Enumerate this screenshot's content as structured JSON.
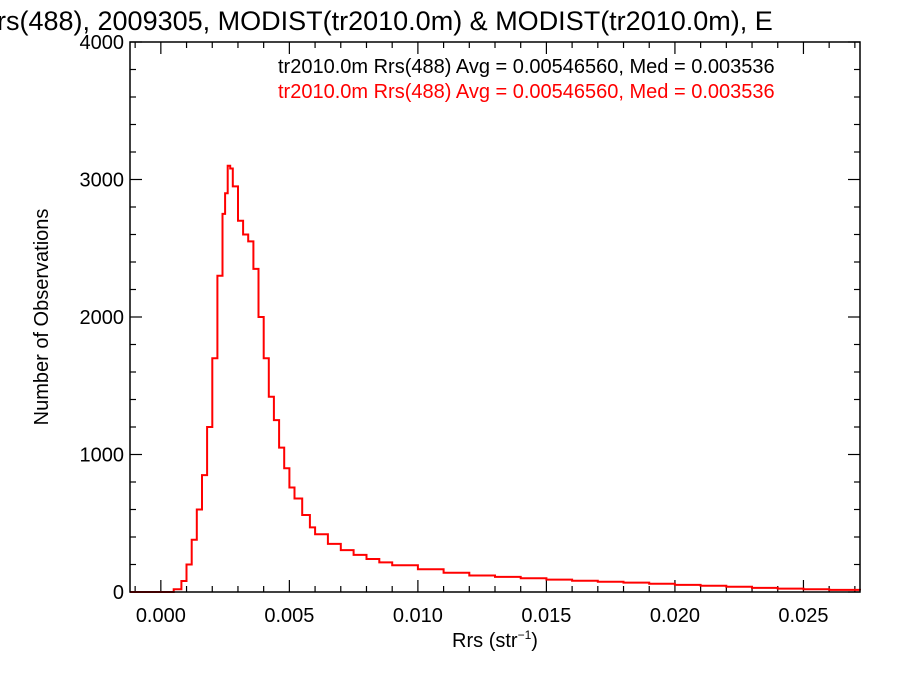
{
  "chart_data": {
    "type": "histogram",
    "title": "rs(488), 2009305, MODIST(tr2010.0m) & MODIST(tr2010.0m), E",
    "xlabel": "Rrs (str",
    "xlabel_superscript": "−1",
    "xlabel_suffix": ")",
    "ylabel": "Number of Observations",
    "xlim": [
      -0.0012,
      0.0272
    ],
    "ylim": [
      0,
      4000
    ],
    "x_ticks": [
      0.0,
      0.005,
      0.01,
      0.015,
      0.02,
      0.025
    ],
    "x_tick_labels": [
      "0.000",
      "0.005",
      "0.010",
      "0.015",
      "0.020",
      "0.025"
    ],
    "y_ticks": [
      0,
      1000,
      2000,
      3000,
      4000
    ],
    "y_tick_labels": [
      "0",
      "1000",
      "2000",
      "3000",
      "4000"
    ],
    "grid": false,
    "series_colors": {
      "black": "#000000",
      "red": "#ff0000"
    },
    "annotations": [
      {
        "text": "tr2010.0m Rrs(488) Avg = 0.00546560, Med = 0.003536",
        "color": "#000000"
      },
      {
        "text": "tr2010.0m Rrs(488) Avg = 0.00546560, Med = 0.003536",
        "color": "#ff0000"
      }
    ],
    "series": [
      {
        "color": "#ff0000",
        "points": [
          [
            -0.0012,
            0
          ],
          [
            0.0,
            0
          ],
          [
            0.0005,
            20
          ],
          [
            0.0008,
            80
          ],
          [
            0.001,
            200
          ],
          [
            0.0012,
            380
          ],
          [
            0.0014,
            600
          ],
          [
            0.0016,
            850
          ],
          [
            0.0018,
            1200
          ],
          [
            0.002,
            1700
          ],
          [
            0.0022,
            2300
          ],
          [
            0.0024,
            2750
          ],
          [
            0.0025,
            2900
          ],
          [
            0.0026,
            3100
          ],
          [
            0.0027,
            3080
          ],
          [
            0.0028,
            2950
          ],
          [
            0.003,
            2700
          ],
          [
            0.0032,
            2600
          ],
          [
            0.0034,
            2550
          ],
          [
            0.0036,
            2350
          ],
          [
            0.0038,
            2000
          ],
          [
            0.004,
            1700
          ],
          [
            0.0042,
            1420
          ],
          [
            0.0044,
            1250
          ],
          [
            0.0046,
            1050
          ],
          [
            0.0048,
            900
          ],
          [
            0.005,
            760
          ],
          [
            0.0052,
            680
          ],
          [
            0.0055,
            560
          ],
          [
            0.0058,
            470
          ],
          [
            0.006,
            420
          ],
          [
            0.0065,
            350
          ],
          [
            0.007,
            305
          ],
          [
            0.0075,
            270
          ],
          [
            0.008,
            240
          ],
          [
            0.0085,
            215
          ],
          [
            0.009,
            195
          ],
          [
            0.01,
            165
          ],
          [
            0.011,
            140
          ],
          [
            0.012,
            120
          ],
          [
            0.013,
            110
          ],
          [
            0.014,
            100
          ],
          [
            0.015,
            90
          ],
          [
            0.016,
            82
          ],
          [
            0.017,
            75
          ],
          [
            0.018,
            68
          ],
          [
            0.019,
            60
          ],
          [
            0.02,
            52
          ],
          [
            0.021,
            45
          ],
          [
            0.022,
            38
          ],
          [
            0.023,
            30
          ],
          [
            0.024,
            25
          ],
          [
            0.025,
            20
          ],
          [
            0.026,
            15
          ],
          [
            0.0272,
            12
          ]
        ]
      }
    ]
  }
}
